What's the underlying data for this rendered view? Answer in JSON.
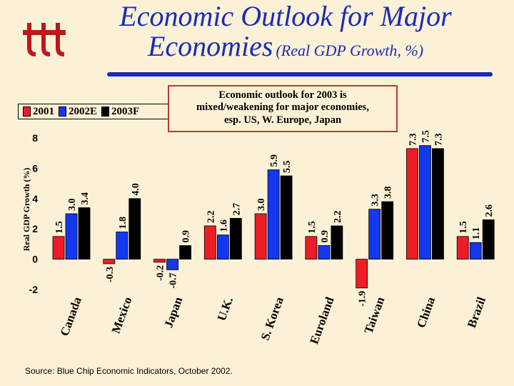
{
  "title": {
    "main_line1": "Economic Outlook for Major",
    "main_line2": "Economies",
    "sub": "(Real GDP Growth, %)"
  },
  "callout": {
    "line1": "Economic outlook for 2003 is",
    "line2": "mixed/weakening for major economies,",
    "line3": "esp. US, W. Europe, Japan"
  },
  "source": "Source:  Blue Chip Economic Indicators, October 2002.",
  "chart_data": {
    "type": "bar",
    "title": "Economic Outlook for Major Economies (Real GDP Growth, %)",
    "xlabel": "",
    "ylabel": "Real GDP Growth (%)",
    "ylim": [
      -2,
      8
    ],
    "yticks": [
      "-2",
      "0",
      "2",
      "4",
      "6",
      "8"
    ],
    "categories": [
      "Canada",
      "Mexico",
      "Japan",
      "U.K.",
      "S. Korea",
      "Euroland",
      "Taiwan",
      "China",
      "Brazil"
    ],
    "series": [
      {
        "name": "2001",
        "color": "#EE1C25",
        "values": [
          1.5,
          -0.3,
          -0.2,
          2.2,
          3.0,
          1.5,
          -1.9,
          7.3,
          1.5
        ],
        "labels": [
          "1.5",
          "-0.3",
          "-0.2",
          "2.2",
          "3.0",
          "1.5",
          "-1.9",
          "7.3",
          "1.5"
        ]
      },
      {
        "name": "2002E",
        "color": "#1437F0",
        "values": [
          3.0,
          1.8,
          -0.7,
          1.6,
          5.9,
          0.9,
          3.3,
          7.5,
          1.1
        ],
        "labels": [
          "3.0",
          "1.8",
          "-0.7",
          "1.6",
          "5.9",
          "0.9",
          "3.3",
          "7.5",
          "1.1"
        ]
      },
      {
        "name": "2003F",
        "color": "#000000",
        "values": [
          3.4,
          4.0,
          0.9,
          2.7,
          5.5,
          2.2,
          3.8,
          7.3,
          2.6
        ],
        "labels": [
          "3.4",
          "4.0",
          "0.9",
          "2.7",
          "5.5",
          "2.2",
          "3.8",
          "7.3",
          "2.6"
        ]
      }
    ],
    "legend_position": "top-left"
  }
}
